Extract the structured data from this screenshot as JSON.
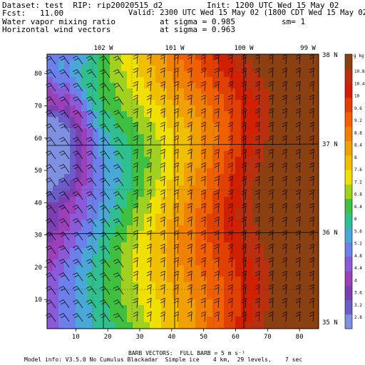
{
  "header": {
    "dataset_line": "Dataset: test  RIP: rip20020515_d2",
    "fcst_line": "Fcst:   11.00",
    "init_line": "Init: 1200 UTC Wed 15 May 02",
    "valid_line": "Valid: 2300 UTC Wed 15 May 02 (1800 CDT Wed 15 May 02)",
    "field1_name": "Water vapor mixing ratio",
    "field1_level": "at sigma = 0.985",
    "field1_sm": "sm= 1",
    "field2_name": "Horizontal wind vectors",
    "field2_level": "at sigma = 0.963"
  },
  "footer": {
    "barb_note": "BARB VECTORS:  FULL BARB = 5 m s⁻¹",
    "model_info": "Model info: V3.5.0 No Cumulus Blackadar  Simple ice    4 km,  29 levels,    7 sec"
  },
  "colors": {
    "colorbar": [
      "#8090e0",
      "#6b5cc8",
      "#7a3fb0",
      "#9a40b8",
      "#8a5ad8",
      "#6b80e8",
      "#4aa8d8",
      "#30c090",
      "#40c040",
      "#a0d020",
      "#f0e000",
      "#f0c000",
      "#f0a000",
      "#f08000",
      "#f06000",
      "#e04000",
      "#d02000",
      "#b83010",
      "#8a4010"
    ]
  },
  "chart_data": {
    "type": "heatmap",
    "title": "Water vapor mixing ratio",
    "colorbar": {
      "unit": "g kg⁻¹",
      "ticks": [
        "10.8",
        "10.4",
        "10",
        "9.6",
        "9.2",
        "8.8",
        "8.4",
        "8",
        "7.6",
        "7.2",
        "6.8",
        "6.4",
        "6",
        "5.6",
        "5.2",
        "4.8",
        "4.4",
        "4",
        "3.6",
        "3.2",
        "2.8"
      ],
      "range": [
        2.8,
        10.8
      ]
    },
    "x_ticks": [
      10,
      20,
      30,
      40,
      50,
      60,
      70,
      80
    ],
    "y_ticks": [
      10,
      20,
      30,
      40,
      50,
      60,
      70,
      80
    ],
    "xlim": [
      1,
      86
    ],
    "ylim": [
      1,
      86
    ],
    "lon_labels": [
      "102 W",
      "101 W",
      "100 W",
      "99 W"
    ],
    "lat_labels": [
      "38 N",
      "37 N",
      "36 N",
      "35 N"
    ],
    "wind_barbs": "full barb = 5 m/s"
  }
}
